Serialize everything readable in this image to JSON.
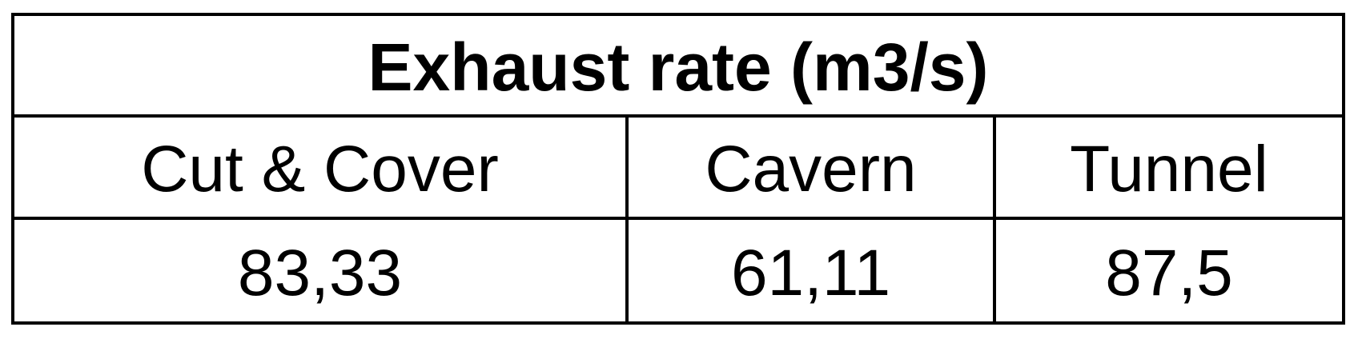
{
  "table": {
    "title": "Exhaust rate (m3/s)",
    "columns": [
      "Cut & Cover",
      "Cavern",
      "Tunnel"
    ],
    "values": [
      "83,33",
      "61,11",
      "87,5"
    ]
  }
}
